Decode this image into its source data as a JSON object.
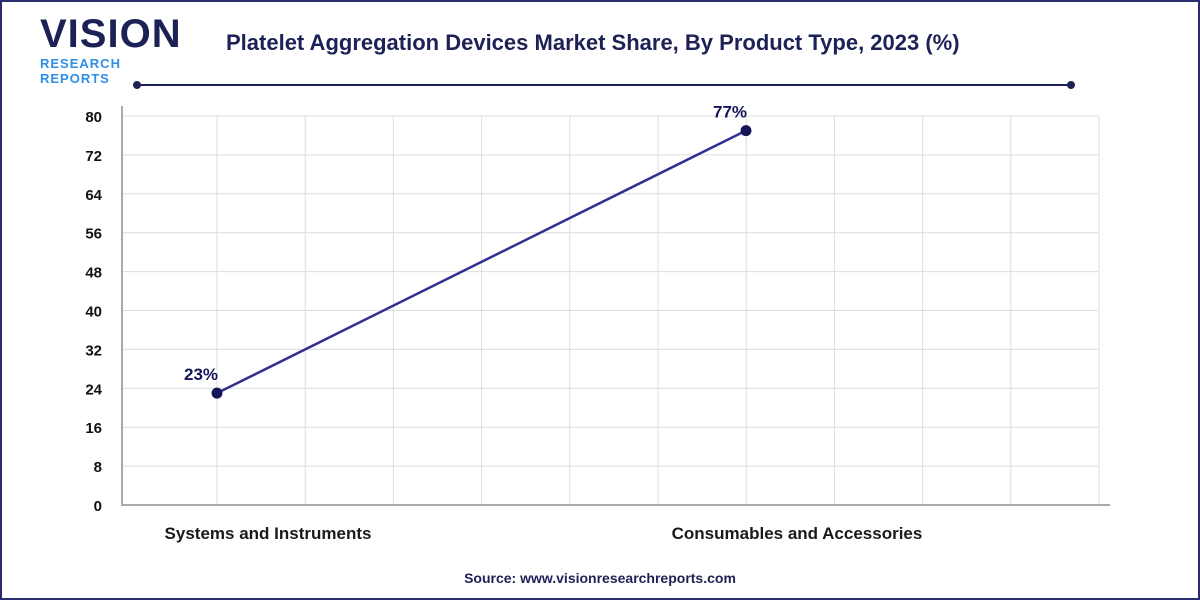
{
  "logo": {
    "main": "VISION",
    "sub": "RESEARCH REPORTS"
  },
  "title": "Platelet Aggregation Devices Market Share, By Product Type, 2023 (%)",
  "source": "Source: www.visionresearchreports.com",
  "colors": {
    "line": "#2e3192",
    "marker": "#141559",
    "brand": "#1d2256",
    "accent": "#2f8ee8"
  },
  "chart_data": {
    "type": "line",
    "title": "Platelet Aggregation Devices Market Share, By Product Type, 2023 (%)",
    "categories": [
      "Systems and Instruments",
      "Consumables and Accessories"
    ],
    "series": [
      {
        "values": [
          23,
          77
        ],
        "labels": [
          "23%",
          "77%"
        ]
      }
    ],
    "ylim": [
      0,
      80
    ],
    "yticks": [
      0,
      8,
      16,
      24,
      32,
      40,
      48,
      56,
      64,
      72,
      80
    ],
    "grid": true,
    "xlabel": "",
    "ylabel": ""
  }
}
